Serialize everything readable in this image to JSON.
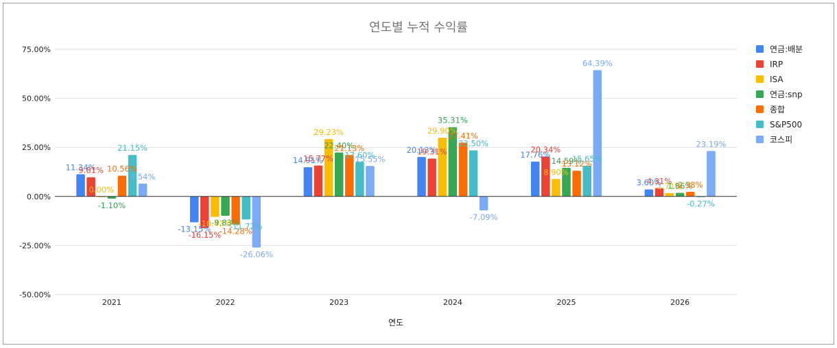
{
  "chart_data": {
    "type": "bar",
    "title": "연도별 누적 수익률",
    "xlabel": "연도",
    "ylabel": "",
    "ylim": [
      -50,
      75
    ],
    "yticks": [
      "75.00%",
      "50.00%",
      "25.00%",
      "0.00%",
      "-25.00%",
      "-50.00%"
    ],
    "ytick_values": [
      75,
      50,
      25,
      0,
      -25,
      -50
    ],
    "grid": true,
    "legend_position": "right",
    "categories": [
      "2021",
      "2022",
      "2023",
      "2024",
      "2025",
      "2026"
    ],
    "series": [
      {
        "name": "연금:배분",
        "color": "#4285f4",
        "values": [
          11.34,
          -13.15,
          14.91,
          20.13,
          17.76,
          3.6
        ],
        "labels": [
          "11.34%",
          "-13.15%",
          "14.91%",
          "20.13%",
          "17.76%",
          "3.60%"
        ]
      },
      {
        "name": "IRP",
        "color": "#ea4335",
        "values": [
          9.81,
          -16.15,
          15.77,
          19.31,
          20.34,
          4.31
        ],
        "labels": [
          "9.81%",
          "-16.15%",
          "15.77%",
          "19.31%",
          "20.34%",
          "4.31%"
        ]
      },
      {
        "name": "ISA",
        "color": "#fbbc04",
        "values": [
          0.0,
          -10.43,
          29.23,
          29.9,
          8.9,
          1.71
        ],
        "labels": [
          "0.00%",
          "-10.43%",
          "29.23%",
          "29.90%",
          "8.90%",
          "1.71%"
        ]
      },
      {
        "name": "연금:snp",
        "color": "#34a853",
        "values": [
          -1.1,
          -9.83,
          22.4,
          35.31,
          14.59,
          1.86
        ],
        "labels": [
          "-1.10%",
          "-9.83%",
          "22.40%",
          "35.31%",
          "14.59%",
          "1.86%"
        ]
      },
      {
        "name": "종합",
        "color": "#ff6d01",
        "values": [
          10.56,
          -14.28,
          21.13,
          27.41,
          13.12,
          2.38
        ],
        "labels": [
          "10.56%",
          "-14.28%",
          "21.13%",
          "27.41%",
          "13.12%",
          "2.38%"
        ]
      },
      {
        "name": "S&P500",
        "color": "#46bdc6",
        "values": [
          21.15,
          -11.72,
          17.6,
          23.5,
          15.65,
          -0.27
        ],
        "labels": [
          "21.15%",
          "-11.72%",
          "17.60%",
          "23.50%",
          "15.65%",
          "-0.27%"
        ]
      },
      {
        "name": "코스피",
        "color": "#7baaf7",
        "values": [
          6.54,
          -26.06,
          15.55,
          -7.09,
          64.39,
          23.19
        ],
        "labels": [
          "6.54%",
          "-26.06%",
          "15.55%",
          "-7.09%",
          "64.39%",
          "23.19%"
        ]
      }
    ]
  }
}
